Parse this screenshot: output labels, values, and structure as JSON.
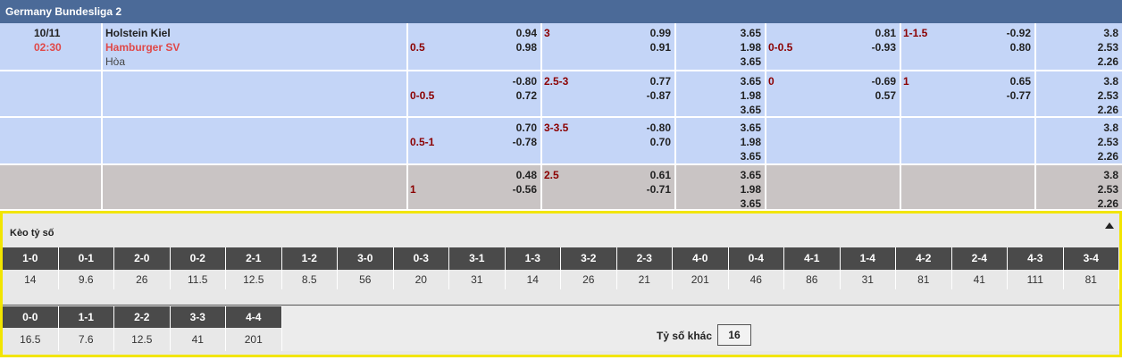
{
  "header": {
    "title": "Germany Bundesliga 2"
  },
  "match": {
    "date": "10/11",
    "time": "02:30",
    "home": "Holstein Kiel",
    "away": "Hamburger SV",
    "draw": "Hòa"
  },
  "rows": [
    {
      "hdp": [
        [
          null,
          "0.94"
        ],
        [
          "0.5",
          "0.98"
        ]
      ],
      "ou": [
        [
          "3",
          "0.99"
        ],
        [
          null,
          "0.91"
        ]
      ],
      "x12": [
        "3.65",
        "1.98",
        "3.65"
      ],
      "h1_hdp": [
        [
          null,
          "0.81"
        ],
        [
          "0-0.5",
          "-0.93"
        ]
      ],
      "h1_ou": [
        [
          "1-1.5",
          "-0.92"
        ],
        [
          null,
          "0.80"
        ]
      ],
      "h1_x12": [
        "3.8",
        "2.53",
        "2.26"
      ]
    },
    {
      "hdp": [
        [
          null,
          "-0.80"
        ],
        [
          "0-0.5",
          "0.72"
        ]
      ],
      "ou": [
        [
          "2.5-3",
          "0.77"
        ],
        [
          null,
          "-0.87"
        ]
      ],
      "x12": [
        "3.65",
        "1.98",
        "3.65"
      ],
      "h1_hdp": [
        [
          "0",
          "-0.69"
        ],
        [
          null,
          "0.57"
        ]
      ],
      "h1_ou": [
        [
          "1",
          "0.65"
        ],
        [
          null,
          "-0.77"
        ]
      ],
      "h1_x12": [
        "3.8",
        "2.53",
        "2.26"
      ]
    },
    {
      "hdp": [
        [
          null,
          "0.70"
        ],
        [
          "0.5-1",
          "-0.78"
        ]
      ],
      "ou": [
        [
          "3-3.5",
          "-0.80"
        ],
        [
          null,
          "0.70"
        ]
      ],
      "x12": [
        "3.65",
        "1.98",
        "3.65"
      ],
      "h1_hdp": null,
      "h1_ou": null,
      "h1_x12": [
        "3.8",
        "2.53",
        "2.26"
      ]
    },
    {
      "hdp": [
        [
          null,
          "0.48"
        ],
        [
          "1",
          "-0.56"
        ]
      ],
      "ou": [
        [
          "2.5",
          "0.61"
        ],
        [
          null,
          "-0.71"
        ]
      ],
      "x12": [
        "3.65",
        "1.98",
        "3.65"
      ],
      "h1_hdp": null,
      "h1_ou": null,
      "h1_x12": [
        "3.8",
        "2.53",
        "2.26"
      ]
    }
  ],
  "correct_score": {
    "title": "Kèo tỷ số",
    "scores": [
      {
        "score": "1-0",
        "odds": "14"
      },
      {
        "score": "0-1",
        "odds": "9.6"
      },
      {
        "score": "2-0",
        "odds": "26"
      },
      {
        "score": "0-2",
        "odds": "11.5"
      },
      {
        "score": "2-1",
        "odds": "12.5"
      },
      {
        "score": "1-2",
        "odds": "8.5"
      },
      {
        "score": "3-0",
        "odds": "56"
      },
      {
        "score": "0-3",
        "odds": "20"
      },
      {
        "score": "3-1",
        "odds": "31"
      },
      {
        "score": "1-3",
        "odds": "14"
      },
      {
        "score": "3-2",
        "odds": "26"
      },
      {
        "score": "2-3",
        "odds": "21"
      },
      {
        "score": "4-0",
        "odds": "201"
      },
      {
        "score": "0-4",
        "odds": "46"
      },
      {
        "score": "4-1",
        "odds": "86"
      },
      {
        "score": "1-4",
        "odds": "31"
      },
      {
        "score": "4-2",
        "odds": "81"
      },
      {
        "score": "2-4",
        "odds": "41"
      },
      {
        "score": "4-3",
        "odds": "111"
      },
      {
        "score": "3-4",
        "odds": "81"
      }
    ],
    "draws": [
      {
        "score": "0-0",
        "odds": "16.5"
      },
      {
        "score": "1-1",
        "odds": "7.6"
      },
      {
        "score": "2-2",
        "odds": "12.5"
      },
      {
        "score": "3-3",
        "odds": "41"
      },
      {
        "score": "4-4",
        "odds": "201"
      }
    ],
    "other_label": "Tỷ số khác",
    "other_odds": "16"
  }
}
